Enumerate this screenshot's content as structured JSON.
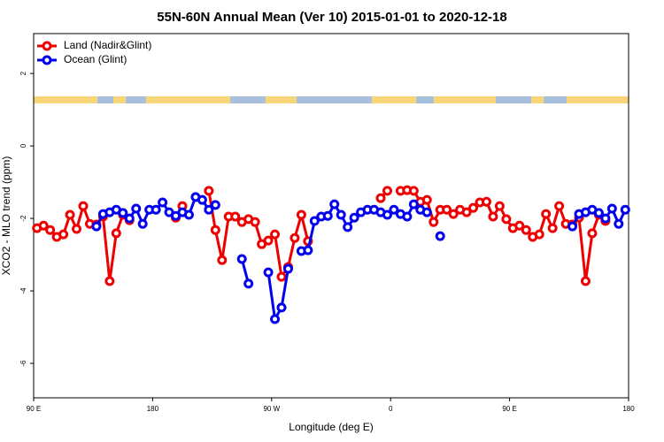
{
  "chart_data": {
    "type": "line",
    "title": "55N-60N Annual Mean (Ver 10)   2015-01-01 to 2020-12-18",
    "x_label": "Longitude (deg E)",
    "y_label": "XCO2 - MLO trend (ppm)",
    "xlim": [
      90,
      540
    ],
    "ylim": [
      -6.95,
      3.1
    ],
    "xticks": [
      {
        "value": 90,
        "label": "90 E"
      },
      180,
      {
        "value": 270,
        "label": "90 W"
      },
      {
        "value": 360,
        "label": "0"
      },
      {
        "value": 450,
        "label": "90 E"
      },
      {
        "value": 540,
        "label": "180"
      }
    ],
    "yticks": [
      -6,
      -4,
      -2,
      0,
      2
    ],
    "legend": "upper-left",
    "x": [
      92.5,
      97.5,
      102.5,
      107.5,
      112.5,
      117.5,
      122.5,
      127.5,
      132.5,
      137.5,
      142.5,
      147.5,
      152.5,
      157.5,
      162.5,
      167.5,
      172.5,
      177.5,
      182.5,
      187.5,
      192.5,
      197.5,
      202.5,
      207.5,
      212.5,
      217.5,
      222.5,
      227.5,
      232.5,
      237.5,
      242.5,
      247.5,
      252.5,
      257.5,
      262.5,
      267.5,
      272.5,
      277.5,
      282.5,
      287.5,
      292.5,
      297.5,
      302.5,
      307.5,
      312.5,
      317.5,
      322.5,
      327.5,
      332.5,
      337.5,
      342.5,
      347.5,
      352.5,
      357.5,
      362.5,
      367.5,
      372.5,
      377.5,
      382.5,
      387.5,
      392.5,
      397.5,
      402.5,
      407.5,
      412.5,
      417.5,
      422.5,
      427.5,
      432.5,
      437.5,
      442.5,
      447.5,
      452.5,
      457.5,
      462.5,
      467.5,
      472.5,
      477.5,
      482.5,
      487.5,
      492.5,
      497.5,
      502.5,
      507.5,
      512.5,
      517.5,
      522.5,
      527.5,
      532.5,
      537.5
    ],
    "series": [
      {
        "name": "Land (Nadir&Glint)",
        "color": "#ee0000",
        "values": [
          -2.27,
          -2.2,
          -2.32,
          -2.51,
          -2.44,
          -1.9,
          -2.29,
          -1.66,
          -2.15,
          -2.17,
          -1.95,
          -3.73,
          -2.41,
          -1.9,
          -2.05,
          null,
          null,
          null,
          null,
          null,
          null,
          -1.98,
          -1.66,
          null,
          null,
          null,
          -1.24,
          -2.32,
          -3.15,
          -1.95,
          -1.95,
          -2.1,
          -2.02,
          -2.1,
          -2.71,
          -2.61,
          -2.44,
          -3.61,
          -3.34,
          -2.54,
          -1.9,
          -2.63,
          null,
          null,
          null,
          null,
          null,
          null,
          null,
          null,
          null,
          null,
          -1.44,
          -1.24,
          null,
          -1.24,
          -1.22,
          -1.24,
          -1.54,
          -1.49,
          -2.1,
          -1.76,
          -1.76,
          -1.88,
          -1.76,
          -1.83,
          -1.71,
          -1.56,
          -1.54,
          -1.95,
          -1.66,
          -2.02,
          -2.27,
          -2.2,
          -2.32,
          -2.51,
          -2.44,
          -1.88,
          -2.27,
          -1.66,
          -2.15,
          -2.17,
          -1.98,
          -3.73,
          -2.41,
          -1.9,
          -2.07,
          null,
          null,
          null
        ]
      },
      {
        "name": "Ocean (Glint)",
        "color": "#0000ee",
        "values": [
          null,
          null,
          null,
          null,
          null,
          null,
          null,
          null,
          null,
          -2.22,
          -1.88,
          -1.83,
          -1.76,
          -1.85,
          -2.0,
          -1.73,
          -2.15,
          -1.76,
          -1.76,
          -1.56,
          -1.83,
          -1.93,
          -1.83,
          -1.9,
          -1.41,
          -1.49,
          -1.76,
          -1.63,
          null,
          null,
          null,
          -3.12,
          -3.8,
          null,
          null,
          -3.49,
          -4.78,
          -4.46,
          -3.39,
          null,
          -2.9,
          -2.88,
          -2.07,
          -1.95,
          -1.93,
          -1.61,
          -1.9,
          -2.24,
          -1.98,
          -1.83,
          -1.76,
          -1.76,
          -1.83,
          -1.9,
          -1.76,
          -1.88,
          -1.95,
          -1.61,
          -1.76,
          -1.83,
          null,
          -2.49,
          null,
          null,
          null,
          null,
          null,
          null,
          null,
          null,
          null,
          null,
          null,
          null,
          null,
          null,
          null,
          null,
          null,
          null,
          null,
          -2.22,
          -1.88,
          -1.83,
          -1.76,
          -1.85,
          -2.0,
          -1.73,
          -2.15,
          -1.76
        ]
      }
    ]
  }
}
